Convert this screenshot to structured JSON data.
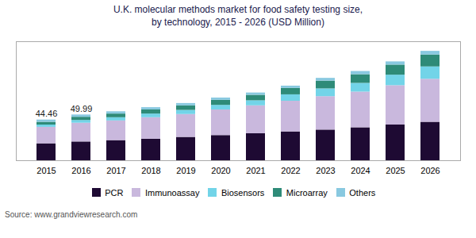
{
  "chart_data": {
    "type": "bar",
    "stacked": true,
    "title": "U.K. molecular methods market for food safety testing size,\nby technology, 2015 - 2026 (USD Million)",
    "categories": [
      "2015",
      "2016",
      "2017",
      "2018",
      "2019",
      "2020",
      "2021",
      "2022",
      "2023",
      "2024",
      "2025",
      "2026"
    ],
    "series": [
      {
        "name": "PCR",
        "color": "#1e0a33",
        "values": [
          18.5,
          20.5,
          22.0,
          23.5,
          25.5,
          27.5,
          29.5,
          31.5,
          33.5,
          36.0,
          39.0,
          42.0
        ]
      },
      {
        "name": "Immunoassay",
        "color": "#c9b8dd",
        "values": [
          18.0,
          20.5,
          21.5,
          23.5,
          25.0,
          28.0,
          30.5,
          33.5,
          36.5,
          39.0,
          43.0,
          47.0
        ]
      },
      {
        "name": "Biosensors",
        "color": "#72d4e8",
        "values": [
          2.5,
          3.0,
          3.5,
          4.0,
          4.5,
          5.0,
          5.5,
          7.0,
          8.5,
          9.5,
          11.5,
          13.5
        ]
      },
      {
        "name": "Microarray",
        "color": "#2e8b78",
        "values": [
          3.0,
          3.5,
          4.0,
          4.5,
          5.0,
          5.5,
          6.0,
          7.0,
          8.5,
          9.5,
          11.0,
          13.0
        ]
      },
      {
        "name": "Others",
        "color": "#89c9e0",
        "values": [
          2.46,
          2.49,
          2.5,
          2.5,
          2.5,
          2.5,
          2.5,
          2.5,
          3.0,
          3.5,
          3.5,
          4.0
        ]
      }
    ],
    "annotations": [
      {
        "x": "2015",
        "text": "44.46"
      },
      {
        "x": "2016",
        "text": "49.99"
      }
    ],
    "caption": "Source: www.grandviewresearch.com",
    "ylim": [
      0,
      130
    ],
    "tick_labels": "x",
    "legend": "bottom",
    "grid": false
  }
}
